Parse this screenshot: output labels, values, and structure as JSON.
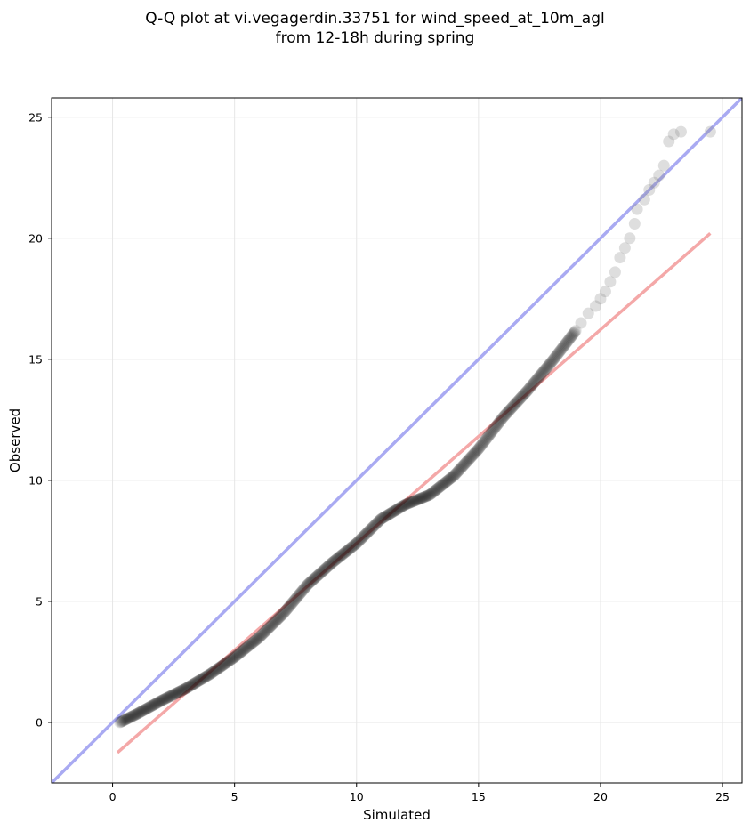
{
  "chart_data": {
    "type": "scatter",
    "title_line1": "Q-Q plot at vi.vegagerdin.33751 for wind_speed_at_10m_agl",
    "title_line2": "from 12-18h during spring",
    "xlabel": "Simulated",
    "ylabel": "Observed",
    "xlim": [
      -2.5,
      25.8
    ],
    "ylim": [
      -2.5,
      25.8
    ],
    "xticks": [
      0,
      5,
      10,
      15,
      20,
      25
    ],
    "yticks": [
      0,
      5,
      10,
      15,
      20,
      25
    ],
    "grid": true,
    "colors": {
      "points": "#000000",
      "identity_line": "#a9aaf2",
      "fit_line": "#f4a8a8"
    },
    "identity_line": {
      "x": [
        -2.5,
        25.8
      ],
      "y": [
        -2.5,
        25.8
      ]
    },
    "fit_line": {
      "x": [
        0.2,
        24.5
      ],
      "y": [
        -1.25,
        20.2
      ]
    },
    "series": [
      {
        "knots": [
          [
            0.3,
            0.0
          ],
          [
            0.5,
            0.1
          ],
          [
            1.0,
            0.35
          ],
          [
            2.0,
            0.9
          ],
          [
            3.0,
            1.4
          ],
          [
            4.0,
            2.0
          ],
          [
            5.0,
            2.7
          ],
          [
            6.0,
            3.5
          ],
          [
            7.0,
            4.5
          ],
          [
            8.0,
            5.7
          ],
          [
            9.0,
            6.6
          ],
          [
            10.0,
            7.4
          ],
          [
            11.0,
            8.4
          ],
          [
            12.0,
            9.0
          ],
          [
            13.0,
            9.4
          ],
          [
            14.0,
            10.2
          ],
          [
            15.0,
            11.3
          ],
          [
            16.0,
            12.6
          ],
          [
            17.0,
            13.7
          ],
          [
            18.0,
            14.9
          ],
          [
            19.0,
            16.2
          ],
          [
            20.0,
            17.6
          ],
          [
            21.0,
            19.5
          ],
          [
            21.5,
            21.3
          ],
          [
            22.0,
            22.0
          ],
          [
            22.5,
            22.6
          ],
          [
            23.0,
            24.2
          ],
          [
            24.5,
            24.4
          ]
        ]
      }
    ]
  }
}
